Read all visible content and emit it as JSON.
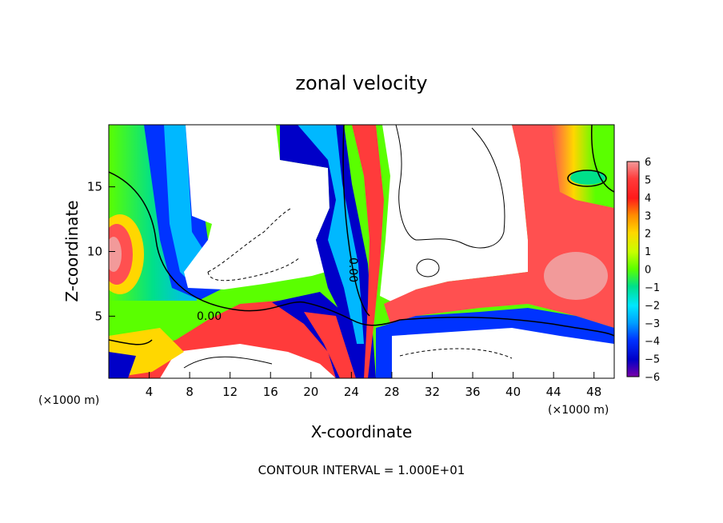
{
  "chart_data": {
    "type": "heatmap",
    "title": "zonal velocity",
    "xlabel": "X-coordinate",
    "ylabel": "Z-coordinate",
    "x_unit_left": "(×1000 m)",
    "x_unit_right": "(×1000 m)",
    "footer": "CONTOUR INTERVAL = 1.000E+01",
    "xlim": [
      0,
      50
    ],
    "ylim": [
      0.2,
      19.8
    ],
    "x_ticks": [
      "4",
      "8",
      "12",
      "16",
      "20",
      "24",
      "28",
      "32",
      "36",
      "40",
      "44",
      "48"
    ],
    "y_ticks": [
      "5",
      "10",
      "15"
    ],
    "colorbar": {
      "labels": [
        "6",
        "5",
        "4",
        "3",
        "2",
        "1",
        "0",
        "-1",
        "-2",
        "-3",
        "-4",
        "-5",
        "-6"
      ],
      "range": [
        -6,
        6
      ],
      "colors": [
        "#f29a9a",
        "#ff3b3b",
        "#ff1a1a",
        "#ff8c00",
        "#ffd700",
        "#c8ff00",
        "#5aff00",
        "#00e08a",
        "#00e6ff",
        "#009fff",
        "#0033ff",
        "#0000c8",
        "#7800a8"
      ]
    },
    "contour_labels": [
      "0.00",
      "0.00"
    ],
    "grid": false,
    "legend": "right"
  }
}
